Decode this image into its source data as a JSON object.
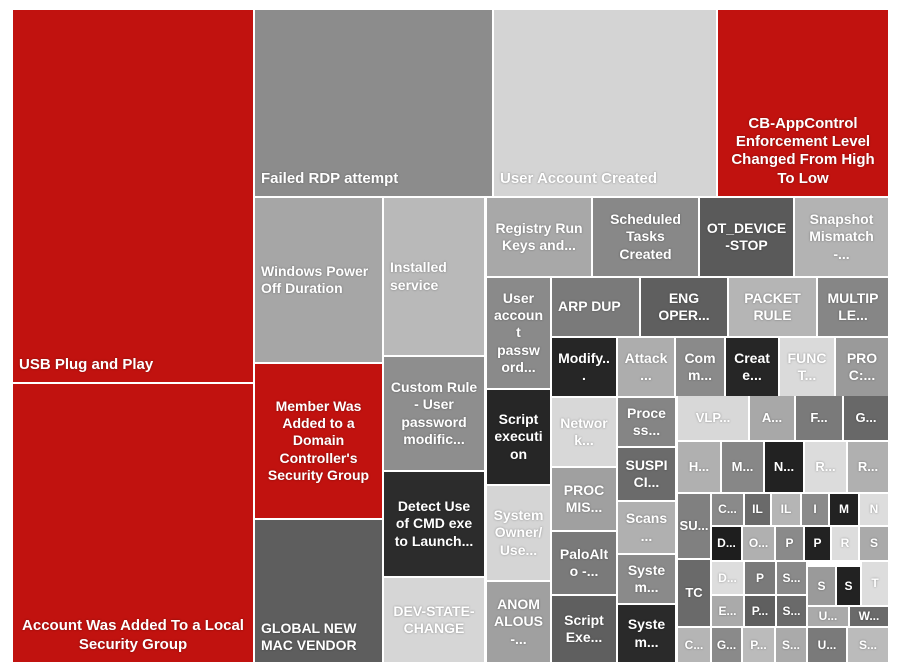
{
  "chart_data": {
    "type": "treemap",
    "title": "",
    "items": [
      {
        "label": "USB Plug and Play",
        "color": "#c1120f"
      },
      {
        "label": "Account Was Added To a Local Security Group",
        "color": "#c1120f"
      },
      {
        "label": "Failed RDP attempt",
        "color": "#8c8c8c"
      },
      {
        "label": "User Account Created",
        "color": "#d4d4d4"
      },
      {
        "label": "CB-AppControl Enforcement Level Changed From High To Low",
        "color": "#c1120f"
      },
      {
        "label": "Windows Power Off Duration",
        "color": "#a6a6a6"
      },
      {
        "label": "Member Was Added to a Domain Controller's Security Group",
        "color": "#c1120f"
      },
      {
        "label": "GLOBAL NEW MAC VENDOR",
        "color": "#5e5e5e"
      },
      {
        "label": "Installed service",
        "color": "#b9b9b9"
      },
      {
        "label": "Custom Rule - User password modific...",
        "color": "#8e8e8e"
      },
      {
        "label": "Detect Use of CMD exe to Launch...",
        "color": "#2c2c2c"
      },
      {
        "label": "DEV-STATE-CHANGE",
        "color": "#d6d6d6"
      },
      {
        "label": "Registry Run Keys and...",
        "color": "#a8a8a8"
      },
      {
        "label": "Scheduled Tasks Created",
        "color": "#888888"
      },
      {
        "label": "OT_DEVICE-STOP",
        "color": "#5a5a5a"
      },
      {
        "label": "Snapshot Mismatch -...",
        "color": "#b3b3b3"
      },
      {
        "label": "User account password...",
        "color": "#8a8a8a"
      },
      {
        "label": "ARP DUP",
        "color": "#7a7a7a"
      },
      {
        "label": "ENG OPER...",
        "color": "#5f5f5f"
      },
      {
        "label": "PACKET RULE",
        "color": "#b5b5b5"
      },
      {
        "label": "MULTIPLE...",
        "color": "#868686"
      },
      {
        "label": "Modify...",
        "color": "#262626"
      },
      {
        "label": "Attack...",
        "color": "#adadad"
      },
      {
        "label": "Comm...",
        "color": "#8a8a8a"
      },
      {
        "label": "Create...",
        "color": "#262626"
      },
      {
        "label": "FUNCT...",
        "color": "#dadada"
      },
      {
        "label": "PROC:...",
        "color": "#9a9a9a"
      },
      {
        "label": "Script execution",
        "color": "#262626"
      },
      {
        "label": "Network...",
        "color": "#d8d8d8"
      },
      {
        "label": "Process...",
        "color": "#858585"
      },
      {
        "label": "SUSPICI...",
        "color": "#6b6b6b"
      },
      {
        "label": "Scans...",
        "color": "#b0b0b0"
      },
      {
        "label": "System...",
        "color": "#8a8a8a"
      },
      {
        "label": "System...",
        "color": "#2a2a2a"
      },
      {
        "label": "System Owner/Use...",
        "color": "#d5d5d5"
      },
      {
        "label": "ANOMALOUS-...",
        "color": "#a0a0a0"
      },
      {
        "label": "PROC MIS...",
        "color": "#a0a0a0"
      },
      {
        "label": "PaloAlto -...",
        "color": "#7a7a7a"
      },
      {
        "label": "Script Exe...",
        "color": "#5f5f5f"
      },
      {
        "label": "VLP...",
        "color": "#d8d8d8"
      },
      {
        "label": "A...",
        "color": "#a8a8a8"
      },
      {
        "label": "F...",
        "color": "#7a7a7a"
      },
      {
        "label": "G...",
        "color": "#686868"
      },
      {
        "label": "H...",
        "color": "#b0b0b0"
      },
      {
        "label": "M...",
        "color": "#878787"
      },
      {
        "label": "N...",
        "color": "#222222"
      },
      {
        "label": "R...",
        "color": "#dcdcdc"
      },
      {
        "label": "R...",
        "color": "#b0b0b0"
      },
      {
        "label": "SU...",
        "color": "#808080"
      },
      {
        "label": "C...",
        "color": "#8a8a8a"
      },
      {
        "label": "IL",
        "color": "#6a6a6a"
      },
      {
        "label": "IL",
        "color": "#b5b5b5"
      },
      {
        "label": "I",
        "color": "#8a8a8a"
      },
      {
        "label": "M",
        "color": "#222222"
      },
      {
        "label": "N",
        "color": "#dddddd"
      },
      {
        "label": "D...",
        "color": "#1e1e1e"
      },
      {
        "label": "O...",
        "color": "#b0b0b0"
      },
      {
        "label": "P",
        "color": "#8a8a8a"
      },
      {
        "label": "P",
        "color": "#222222"
      },
      {
        "label": "R",
        "color": "#dddddd"
      },
      {
        "label": "S",
        "color": "#aaaaaa"
      },
      {
        "label": "TC",
        "color": "#6a6a6a"
      },
      {
        "label": "D...",
        "color": "#dddddd"
      },
      {
        "label": "P",
        "color": "#7a7a7a"
      },
      {
        "label": "S...",
        "color": "#8a8a8a"
      },
      {
        "label": "S",
        "color": "#9a9a9a"
      },
      {
        "label": "S",
        "color": "#222222"
      },
      {
        "label": "T",
        "color": "#dddddd"
      },
      {
        "label": "E...",
        "color": "#aaaaaa"
      },
      {
        "label": "P...",
        "color": "#5f5f5f"
      },
      {
        "label": "S...",
        "color": "#6a6a6a"
      },
      {
        "label": "U...",
        "color": "#aaaaaa"
      },
      {
        "label": "W...",
        "color": "#6a6a6a"
      },
      {
        "label": "C...",
        "color": "#b5b5b5"
      },
      {
        "label": "G...",
        "color": "#8a8a8a"
      },
      {
        "label": "P...",
        "color": "#bbbbbb"
      },
      {
        "label": "S...",
        "color": "#aaaaaa"
      },
      {
        "label": "U...",
        "color": "#7a7a7a"
      },
      {
        "label": "S...",
        "color": "#bbbbbb"
      }
    ]
  }
}
